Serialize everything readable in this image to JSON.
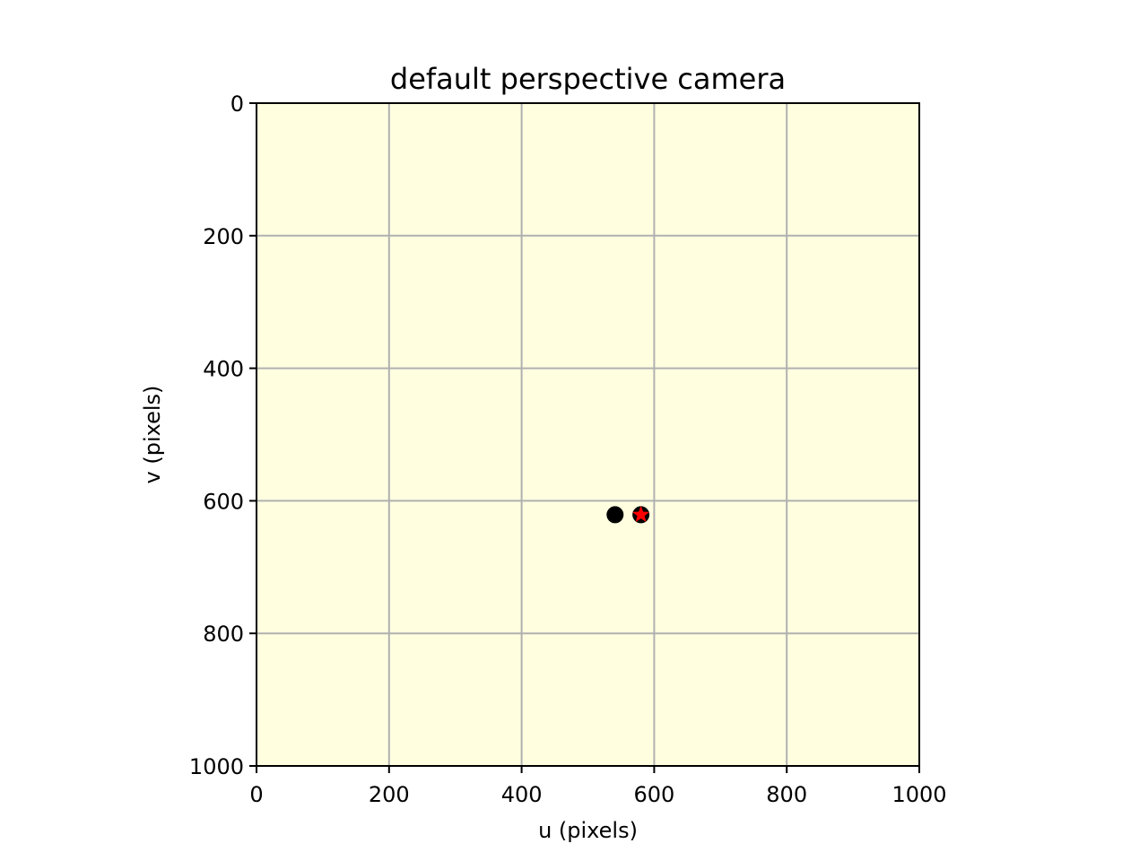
{
  "chart_data": {
    "type": "scatter",
    "title": "default perspective camera",
    "xlabel": "u (pixels)",
    "ylabel": "v (pixels)",
    "xlim": [
      0,
      1000
    ],
    "ylim": [
      1000,
      0
    ],
    "y_inverted": true,
    "xticks": [
      0,
      200,
      400,
      600,
      800,
      1000
    ],
    "yticks": [
      0,
      200,
      400,
      600,
      800,
      1000
    ],
    "grid": true,
    "background_color": "#ffffe0",
    "series": [
      {
        "marker": "circle",
        "color": "#000000",
        "points": [
          {
            "x": 541,
            "y": 621
          }
        ]
      },
      {
        "marker": "circle",
        "color": "#000000",
        "points": [
          {
            "x": 580,
            "y": 621
          }
        ]
      },
      {
        "marker": "star",
        "color": "#ff0000",
        "points": [
          {
            "x": 580,
            "y": 621
          }
        ]
      }
    ]
  }
}
